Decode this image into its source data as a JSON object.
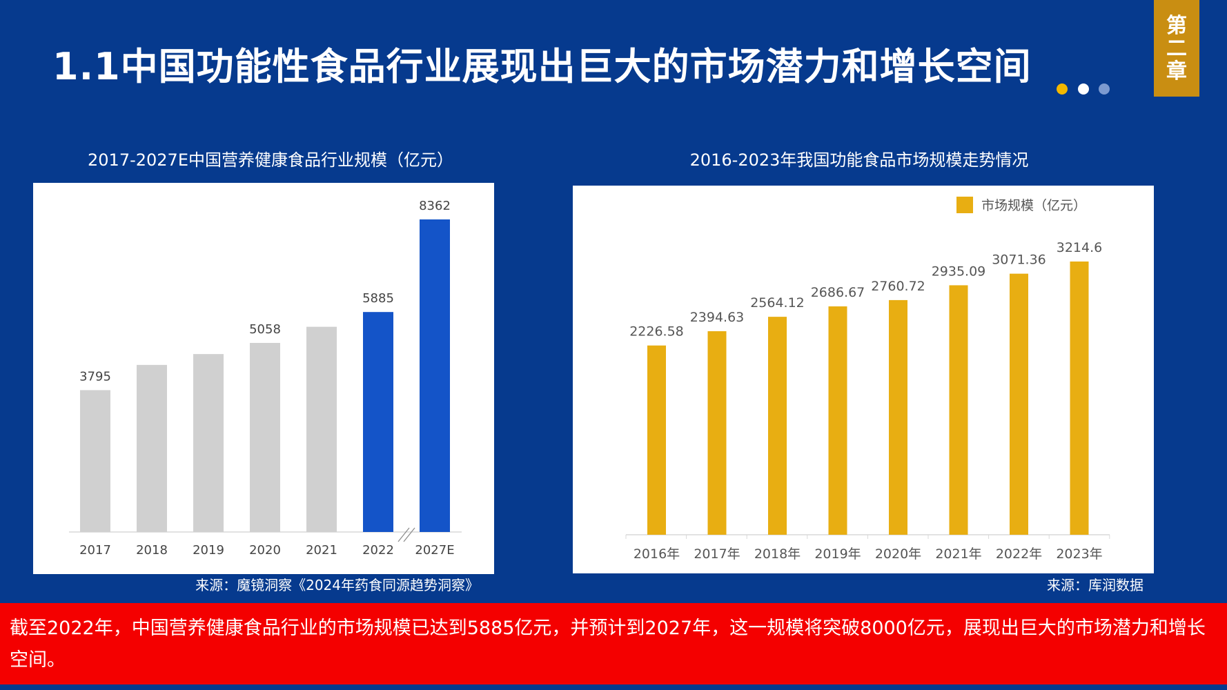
{
  "header": {
    "title": "1.1中国功能性食品行业展现出巨大的市场潜力和增长空间",
    "chapter_tag": [
      "第",
      "二",
      "章"
    ],
    "dot_colors": [
      "#f3b800",
      "#ffffff",
      "#7c9ad0"
    ]
  },
  "chart_data": [
    {
      "type": "bar",
      "title": "2017-2027E中国营养健康食品行业规模（亿元）",
      "categories": [
        "2017",
        "2018",
        "2019",
        "2020",
        "2021",
        "2022",
        "2027E"
      ],
      "values": [
        3795,
        4470,
        4760,
        5058,
        5490,
        5885,
        8362
      ],
      "data_labels": [
        "3795",
        "",
        "",
        "5058",
        "",
        "5885",
        "8362"
      ],
      "bar_colors": [
        "#d0d0d0",
        "#d0d0d0",
        "#d0d0d0",
        "#d0d0d0",
        "#d0d0d0",
        "#1454c8",
        "#1454c8"
      ],
      "axis_break_between": [
        "2022",
        "2027E"
      ],
      "ylim": [
        0,
        8362
      ],
      "grid": false,
      "source": "来源：魔镜洞察《2024年药食同源趋势洞察》"
    },
    {
      "type": "bar",
      "title": "2016-2023年我国功能食品市场规模走势情况",
      "categories": [
        "2016年",
        "2017年",
        "2018年",
        "2019年",
        "2020年",
        "2021年",
        "2022年",
        "2023年"
      ],
      "series": [
        {
          "name": "市场规模（亿元）",
          "values": [
            2226.58,
            2394.63,
            2564.12,
            2686.67,
            2760.72,
            2935.09,
            3071.36,
            3214.6
          ]
        }
      ],
      "data_labels": [
        "2226.58",
        "2394.63",
        "2564.12",
        "2686.67",
        "2760.72",
        "2935.09",
        "3071.36",
        "3214.6"
      ],
      "color": "#e8ae12",
      "legend": "top-right",
      "ylim": [
        0,
        3214.6
      ],
      "grid": false,
      "source": "来源：库润数据"
    }
  ],
  "footer_note": "截至2022年，中国营养健康食品行业的市场规模已达到5885亿元，并预计到2027年，这一规模将突破8000亿元，展现出巨大的市场潜力和增长空间。"
}
